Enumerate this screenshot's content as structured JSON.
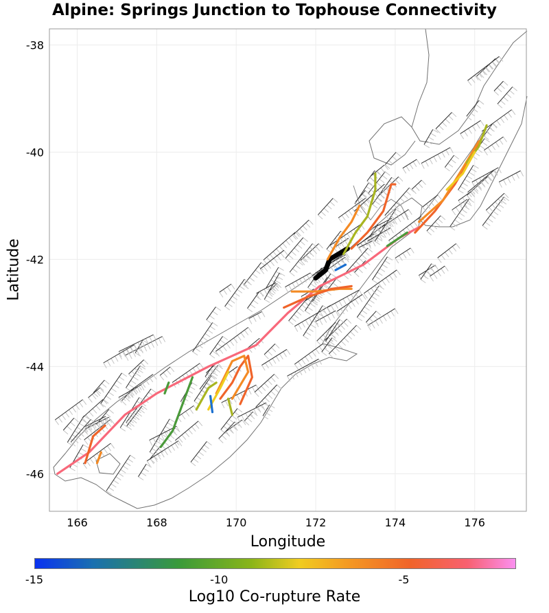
{
  "title": "Alpine: Springs Junction to Tophouse Connectivity",
  "map": {
    "type": "fault-map",
    "xlabel": "Longitude",
    "ylabel": "Latitude",
    "x_ticks": [
      "166",
      "168",
      "170",
      "172",
      "174",
      "176"
    ],
    "y_ticks": [
      "-38",
      "-40",
      "-42",
      "-44",
      "-46"
    ],
    "x_range": [
      165.3,
      177.3
    ],
    "y_range": [
      -46.7,
      -37.7
    ],
    "colors": {
      "frame": "#9a9a9a",
      "grid": "#ececec",
      "coast": "#707070",
      "fault": "#303030",
      "hatch": "#c4c4c4",
      "target": "#000000"
    },
    "target_fault": "Alpine: Springs Junction to Tophouse",
    "ruptures": [
      {
        "color": "#f8687a",
        "points": [
          [
            165.5,
            -46.0
          ],
          [
            166.3,
            -45.6
          ],
          [
            167.2,
            -44.9
          ],
          [
            168.0,
            -44.5
          ],
          [
            169.3,
            -44.0
          ],
          [
            170.5,
            -43.6
          ],
          [
            171.3,
            -43.0
          ],
          [
            172.1,
            -42.5
          ],
          [
            173.2,
            -42.1
          ],
          [
            174.1,
            -41.6
          ],
          [
            174.6,
            -41.4
          ]
        ]
      },
      {
        "color": "#000000",
        "points": [
          [
            172.0,
            -42.35
          ],
          [
            172.25,
            -42.2
          ],
          [
            172.35,
            -42.0
          ],
          [
            172.8,
            -41.8
          ]
        ]
      },
      {
        "color": "#f0642a",
        "points": [
          [
            172.9,
            -41.8
          ],
          [
            173.3,
            -41.5
          ],
          [
            173.7,
            -41.1
          ],
          [
            173.9,
            -40.6
          ],
          [
            174.0,
            -40.6
          ]
        ]
      },
      {
        "color": "#a8b520",
        "points": [
          [
            172.7,
            -41.9
          ],
          [
            173.0,
            -41.5
          ],
          [
            173.3,
            -41.2
          ],
          [
            173.5,
            -40.7
          ],
          [
            173.5,
            -40.4
          ]
        ]
      },
      {
        "color": "#f48a24",
        "points": [
          [
            172.3,
            -42.0
          ],
          [
            172.6,
            -41.6
          ],
          [
            172.9,
            -41.3
          ],
          [
            173.1,
            -41.0
          ]
        ]
      },
      {
        "color": "#f0642a",
        "points": [
          [
            174.5,
            -41.5
          ],
          [
            175.0,
            -41.1
          ],
          [
            175.5,
            -40.6
          ],
          [
            175.9,
            -40.1
          ],
          [
            176.2,
            -39.7
          ]
        ]
      },
      {
        "color": "#f48a24",
        "points": [
          [
            174.6,
            -41.3
          ],
          [
            175.2,
            -40.9
          ],
          [
            175.7,
            -40.3
          ],
          [
            176.1,
            -39.8
          ]
        ]
      },
      {
        "color": "#a8b520",
        "points": [
          [
            175.8,
            -40.2
          ],
          [
            176.1,
            -39.9
          ],
          [
            176.3,
            -39.5
          ]
        ]
      },
      {
        "color": "#f0cc20",
        "points": [
          [
            175.3,
            -40.7
          ],
          [
            175.7,
            -40.4
          ],
          [
            176.0,
            -40.0
          ]
        ]
      },
      {
        "color": "#4a9a3a",
        "points": [
          [
            173.8,
            -41.75
          ],
          [
            174.3,
            -41.5
          ]
        ]
      },
      {
        "color": "#1a6fd0",
        "points": [
          [
            172.5,
            -42.2
          ],
          [
            172.75,
            -42.1
          ]
        ]
      },
      {
        "color": "#f48a24",
        "points": [
          [
            171.4,
            -42.6
          ],
          [
            172.0,
            -42.6
          ],
          [
            172.6,
            -42.55
          ],
          [
            172.9,
            -42.55
          ]
        ]
      },
      {
        "color": "#f0642a",
        "points": [
          [
            171.2,
            -42.9
          ],
          [
            171.8,
            -42.7
          ],
          [
            172.4,
            -42.55
          ],
          [
            172.9,
            -42.5
          ]
        ]
      },
      {
        "color": "#f0642a",
        "points": [
          [
            169.6,
            -44.6
          ],
          [
            169.9,
            -44.3
          ],
          [
            170.1,
            -44.0
          ],
          [
            170.3,
            -43.8
          ],
          [
            170.4,
            -44.2
          ],
          [
            170.1,
            -44.7
          ]
        ]
      },
      {
        "color": "#f48a24",
        "points": [
          [
            169.5,
            -44.5
          ],
          [
            169.7,
            -44.2
          ],
          [
            169.9,
            -43.9
          ],
          [
            170.2,
            -43.8
          ],
          [
            170.3,
            -44.1
          ],
          [
            169.9,
            -44.6
          ]
        ]
      },
      {
        "color": "#f0cc20",
        "points": [
          [
            169.3,
            -44.8
          ],
          [
            169.6,
            -44.4
          ],
          [
            169.8,
            -44.1
          ]
        ]
      },
      {
        "color": "#a8b520",
        "points": [
          [
            169.0,
            -44.8
          ],
          [
            169.3,
            -44.4
          ],
          [
            169.5,
            -44.3
          ]
        ]
      },
      {
        "color": "#a8b520",
        "points": [
          [
            169.8,
            -44.6
          ],
          [
            169.9,
            -44.9
          ]
        ]
      },
      {
        "color": "#1a6fd0",
        "points": [
          [
            169.35,
            -44.55
          ],
          [
            169.4,
            -44.85
          ]
        ]
      },
      {
        "color": "#4a9a3a",
        "points": [
          [
            168.1,
            -45.5
          ],
          [
            168.4,
            -45.2
          ],
          [
            168.6,
            -44.8
          ],
          [
            168.8,
            -44.4
          ],
          [
            168.9,
            -44.2
          ]
        ]
      },
      {
        "color": "#4a9a3a",
        "points": [
          [
            168.2,
            -44.5
          ],
          [
            168.3,
            -44.3
          ]
        ]
      },
      {
        "color": "#f0642a",
        "points": [
          [
            166.2,
            -45.8
          ],
          [
            166.4,
            -45.3
          ],
          [
            166.7,
            -45.1
          ]
        ]
      },
      {
        "color": "#f48a24",
        "points": [
          [
            166.5,
            -45.8
          ],
          [
            166.6,
            -45.6
          ]
        ]
      }
    ]
  },
  "colorbar": {
    "label": "Log10 Co-rupture Rate",
    "ticks": [
      "-15",
      "-10",
      "-5"
    ],
    "tick_values": [
      -15,
      -10,
      -5
    ],
    "range": [
      -15,
      -2
    ]
  }
}
